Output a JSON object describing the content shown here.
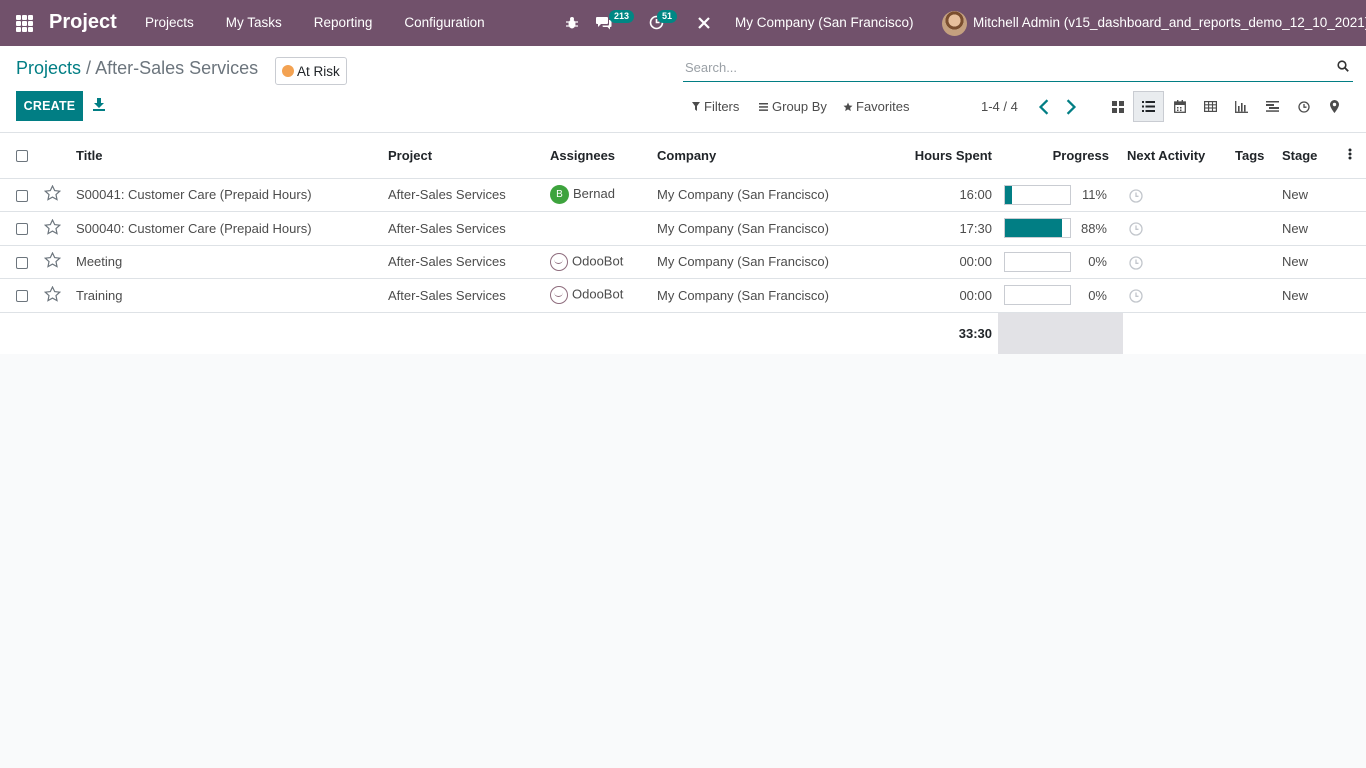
{
  "navbar": {
    "app_name": "Project",
    "menu": [
      "Projects",
      "My Tasks",
      "Reporting",
      "Configuration"
    ],
    "messages_count": "213",
    "activities_count": "51",
    "company": "My Company (San Francisco)",
    "user": "Mitchell Admin (v15_dashboard_and_reports_demo_12_10_2021)"
  },
  "breadcrumb": {
    "parent": "Projects",
    "separator": "/",
    "current": "After-Sales Services"
  },
  "status": {
    "label": "At Risk",
    "color": "#f3a252"
  },
  "search": {
    "placeholder": "Search..."
  },
  "toolbar": {
    "create_label": "CREATE",
    "filters_label": "Filters",
    "group_by_label": "Group By",
    "favorites_label": "Favorites",
    "pager": "1-4 / 4"
  },
  "views": [
    "kanban-icon",
    "list-icon",
    "calendar-icon",
    "pivot-icon",
    "graph-icon",
    "gantt-icon",
    "activity-icon",
    "map-icon"
  ],
  "table": {
    "columns": [
      "Title",
      "Project",
      "Assignees",
      "Company",
      "Hours Spent",
      "Progress",
      "Next Activity",
      "Tags",
      "Stage"
    ],
    "rows": [
      {
        "title": "S00041: Customer Care (Prepaid Hours)",
        "project": "After-Sales Services",
        "assignee": "Bernad",
        "assignee_initial": "B",
        "company": "My Company (San Francisco)",
        "hours": "16:00",
        "progress": 11,
        "progress_label": "11%",
        "stage": "New"
      },
      {
        "title": "S00040: Customer Care (Prepaid Hours)",
        "project": "After-Sales Services",
        "assignee": "",
        "assignee_initial": "",
        "company": "My Company (San Francisco)",
        "hours": "17:30",
        "progress": 88,
        "progress_label": "88%",
        "stage": "New"
      },
      {
        "title": "Meeting",
        "project": "After-Sales Services",
        "assignee": "OdooBot",
        "assignee_initial": "",
        "company": "My Company (San Francisco)",
        "hours": "00:00",
        "progress": 0,
        "progress_label": "0%",
        "stage": "New"
      },
      {
        "title": "Training",
        "project": "After-Sales Services",
        "assignee": "OdooBot",
        "assignee_initial": "",
        "company": "My Company (San Francisco)",
        "hours": "00:00",
        "progress": 0,
        "progress_label": "0%",
        "stage": "New"
      }
    ],
    "total_hours": "33:30"
  },
  "colors": {
    "navbar": "#71516b",
    "primary": "#017e84"
  }
}
